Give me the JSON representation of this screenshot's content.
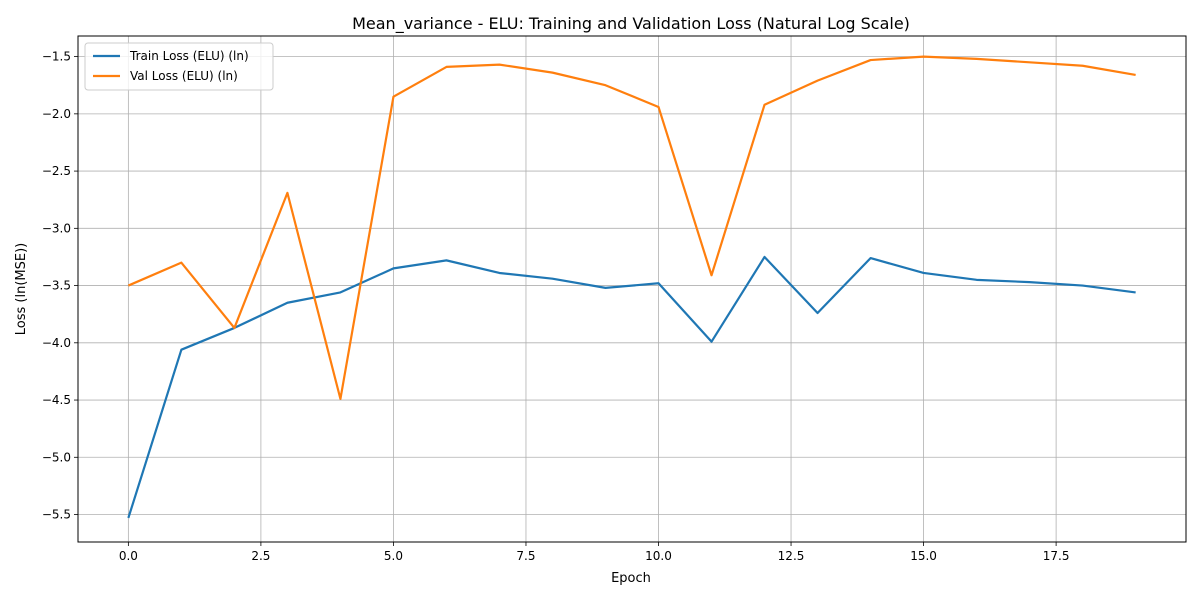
{
  "chart_data": {
    "type": "line",
    "title": "Mean_variance - ELU: Training and Validation Loss (Natural Log Scale)",
    "xlabel": "Epoch",
    "ylabel": "Loss (ln(MSE))",
    "xlim": [
      -0.95,
      19.95
    ],
    "ylim": [
      -5.74,
      -1.32
    ],
    "x_ticks": [
      0.0,
      2.5,
      5.0,
      7.5,
      10.0,
      12.5,
      15.0,
      17.5
    ],
    "x_tick_labels": [
      "0.0",
      "2.5",
      "5.0",
      "7.5",
      "10.0",
      "12.5",
      "15.0",
      "17.5"
    ],
    "y_ticks": [
      -5.5,
      -5.0,
      -4.5,
      -4.0,
      -3.5,
      -3.0,
      -2.5,
      -2.0,
      -1.5
    ],
    "y_tick_labels": [
      "−5.5",
      "−5.0",
      "−4.5",
      "−4.0",
      "−3.5",
      "−3.0",
      "−2.5",
      "−2.0",
      "−1.5"
    ],
    "grid": true,
    "legend_position": "top-left",
    "x": [
      0,
      1,
      2,
      3,
      4,
      5,
      6,
      7,
      8,
      9,
      10,
      11,
      12,
      13,
      14,
      15,
      16,
      17,
      18,
      19
    ],
    "series": [
      {
        "name": "Train Loss (ELU) (ln)",
        "color": "#1f77b4",
        "values": [
          -5.53,
          -4.06,
          -3.87,
          -3.65,
          -3.56,
          -3.35,
          -3.28,
          -3.39,
          -3.44,
          -3.52,
          -3.48,
          -3.99,
          -3.25,
          -3.74,
          -3.26,
          -3.39,
          -3.45,
          -3.47,
          -3.5,
          -3.56
        ]
      },
      {
        "name": "Val Loss (ELU) (ln)",
        "color": "#ff7f0e",
        "values": [
          -3.5,
          -3.3,
          -3.87,
          -2.69,
          -4.49,
          -1.85,
          -1.59,
          -1.57,
          -1.64,
          -1.75,
          -1.94,
          -3.41,
          -1.92,
          -1.71,
          -1.53,
          -1.5,
          -1.52,
          -1.55,
          -1.58,
          -1.66
        ]
      }
    ]
  }
}
